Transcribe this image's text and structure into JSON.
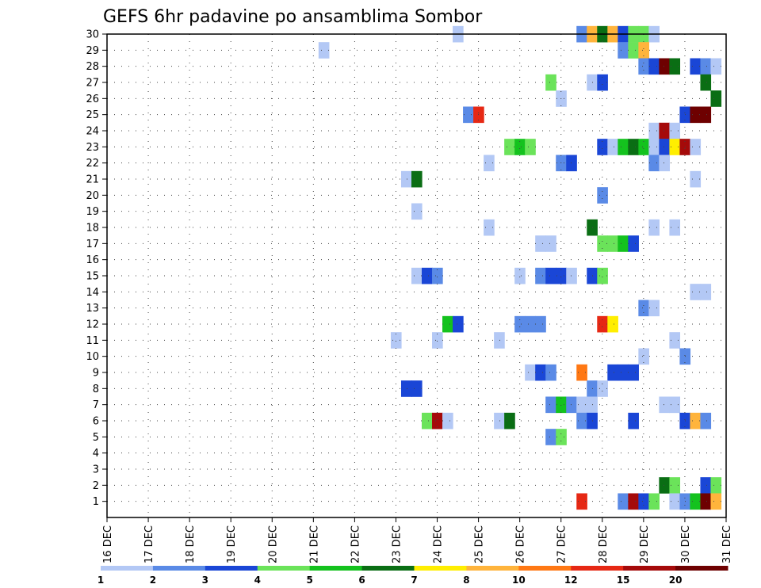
{
  "chart_data": {
    "type": "heatmap",
    "title": "GEFS 6hr padavine po ansamblima Sombor",
    "xlabel": "",
    "ylabel": "",
    "x_ticks": [
      "16 DEC",
      "17 DEC",
      "18 DEC",
      "19 DEC",
      "20 DEC",
      "21 DEC",
      "22 DEC",
      "23 DEC",
      "24 DEC",
      "25 DEC",
      "26 DEC",
      "27 DEC",
      "28 DEC",
      "29 DEC",
      "30 DEC",
      "31 DEC"
    ],
    "y_ticks": [
      1,
      2,
      3,
      4,
      5,
      6,
      7,
      8,
      9,
      10,
      11,
      12,
      13,
      14,
      15,
      16,
      17,
      18,
      19,
      20,
      21,
      22,
      23,
      24,
      25,
      26,
      27,
      28,
      29,
      30
    ],
    "y_range": [
      0,
      30
    ],
    "grid": true,
    "colorbar": {
      "labels": [
        "1",
        "2",
        "3",
        "4",
        "5",
        "6",
        "7",
        "8",
        "10",
        "12",
        "15",
        "20"
      ],
      "colors": [
        "#b3c8f5",
        "#5a8ae6",
        "#1a46d6",
        "#6be35a",
        "#14c21e",
        "#0a6e14",
        "#ffee00",
        "#ffb43c",
        "#ff7814",
        "#e62814",
        "#a50a0a",
        "#6e0000"
      ]
    },
    "cells_note": "each cell: [ensemble member, day offset from 16 DEC (6h steps of 0.25), color class 1-12]",
    "cells": [
      [
        30,
        8.5,
        1
      ],
      [
        30,
        11.5,
        2
      ],
      [
        30,
        11.75,
        8
      ],
      [
        30,
        12.0,
        6
      ],
      [
        30,
        12.25,
        8
      ],
      [
        30,
        12.5,
        3
      ],
      [
        30,
        12.75,
        4
      ],
      [
        30,
        13.0,
        4
      ],
      [
        30,
        13.25,
        1
      ],
      [
        29,
        5.25,
        1
      ],
      [
        29,
        12.5,
        2
      ],
      [
        29,
        12.75,
        4
      ],
      [
        29,
        13.0,
        8
      ],
      [
        28,
        13.0,
        2
      ],
      [
        28,
        13.25,
        3
      ],
      [
        28,
        13.5,
        12
      ],
      [
        28,
        13.75,
        6
      ],
      [
        28,
        14.25,
        3
      ],
      [
        28,
        14.5,
        2
      ],
      [
        28,
        14.75,
        1
      ],
      [
        27,
        10.75,
        4
      ],
      [
        27,
        11.75,
        1
      ],
      [
        27,
        12.0,
        3
      ],
      [
        27,
        14.5,
        6
      ],
      [
        26,
        11.0,
        1
      ],
      [
        26,
        14.75,
        6
      ],
      [
        25,
        8.75,
        2
      ],
      [
        25,
        9.0,
        10
      ],
      [
        25,
        14.0,
        3
      ],
      [
        25,
        14.25,
        12
      ],
      [
        25,
        14.5,
        12
      ],
      [
        24,
        13.25,
        1
      ],
      [
        24,
        13.5,
        11
      ],
      [
        24,
        13.75,
        1
      ],
      [
        23,
        9.75,
        4
      ],
      [
        23,
        10.0,
        5
      ],
      [
        23,
        10.25,
        4
      ],
      [
        23,
        12.0,
        3
      ],
      [
        23,
        12.25,
        1
      ],
      [
        23,
        12.5,
        5
      ],
      [
        23,
        12.75,
        6
      ],
      [
        23,
        13.0,
        5
      ],
      [
        23,
        13.25,
        1
      ],
      [
        23,
        13.5,
        3
      ],
      [
        23,
        13.75,
        7
      ],
      [
        23,
        14.0,
        11
      ],
      [
        23,
        14.25,
        1
      ],
      [
        22,
        9.25,
        1
      ],
      [
        22,
        11.0,
        2
      ],
      [
        22,
        11.25,
        3
      ],
      [
        22,
        13.25,
        2
      ],
      [
        22,
        13.5,
        1
      ],
      [
        21,
        7.25,
        1
      ],
      [
        21,
        7.5,
        6
      ],
      [
        21,
        14.25,
        1
      ],
      [
        20,
        12.0,
        2
      ],
      [
        19,
        7.5,
        1
      ],
      [
        18,
        9.25,
        1
      ],
      [
        18,
        11.75,
        6
      ],
      [
        18,
        13.25,
        1
      ],
      [
        18,
        13.75,
        1
      ],
      [
        17,
        10.5,
        1
      ],
      [
        17,
        10.75,
        1
      ],
      [
        17,
        12.0,
        4
      ],
      [
        17,
        12.25,
        4
      ],
      [
        17,
        12.5,
        5
      ],
      [
        17,
        12.75,
        3
      ],
      [
        15,
        7.5,
        1
      ],
      [
        15,
        7.75,
        3
      ],
      [
        15,
        8.0,
        2
      ],
      [
        15,
        10.0,
        1
      ],
      [
        15,
        10.5,
        2
      ],
      [
        15,
        10.75,
        3
      ],
      [
        15,
        11.0,
        3
      ],
      [
        15,
        11.25,
        1
      ],
      [
        15,
        11.75,
        3
      ],
      [
        15,
        12.0,
        4
      ],
      [
        14,
        14.25,
        1
      ],
      [
        14,
        14.5,
        1
      ],
      [
        13,
        13.0,
        2
      ],
      [
        13,
        13.25,
        1
      ],
      [
        12,
        8.25,
        5
      ],
      [
        12,
        8.5,
        3
      ],
      [
        12,
        10.0,
        2
      ],
      [
        12,
        10.25,
        2
      ],
      [
        12,
        10.5,
        2
      ],
      [
        12,
        12.0,
        10
      ],
      [
        12,
        12.25,
        7
      ],
      [
        11,
        7.0,
        1
      ],
      [
        11,
        8.0,
        1
      ],
      [
        11,
        9.5,
        1
      ],
      [
        11,
        13.75,
        1
      ],
      [
        10,
        13.0,
        1
      ],
      [
        10,
        14.0,
        2
      ],
      [
        9,
        10.25,
        1
      ],
      [
        9,
        10.5,
        3
      ],
      [
        9,
        10.75,
        2
      ],
      [
        9,
        11.5,
        9
      ],
      [
        9,
        12.25,
        3
      ],
      [
        9,
        12.5,
        3
      ],
      [
        9,
        12.75,
        3
      ],
      [
        8,
        7.25,
        3
      ],
      [
        8,
        7.5,
        3
      ],
      [
        8,
        11.75,
        2
      ],
      [
        8,
        12.0,
        1
      ],
      [
        7,
        10.75,
        2
      ],
      [
        7,
        11.0,
        5
      ],
      [
        7,
        11.25,
        2
      ],
      [
        7,
        11.5,
        1
      ],
      [
        7,
        11.75,
        1
      ],
      [
        7,
        13.5,
        1
      ],
      [
        7,
        13.75,
        1
      ],
      [
        6,
        7.75,
        4
      ],
      [
        6,
        8.0,
        11
      ],
      [
        6,
        8.25,
        1
      ],
      [
        6,
        9.5,
        1
      ],
      [
        6,
        9.75,
        6
      ],
      [
        6,
        11.5,
        2
      ],
      [
        6,
        11.75,
        3
      ],
      [
        6,
        12.75,
        3
      ],
      [
        6,
        14.0,
        3
      ],
      [
        6,
        14.25,
        8
      ],
      [
        6,
        14.5,
        2
      ],
      [
        5,
        10.75,
        2
      ],
      [
        5,
        11.0,
        4
      ],
      [
        2,
        13.5,
        6
      ],
      [
        2,
        13.75,
        4
      ],
      [
        2,
        14.5,
        3
      ],
      [
        2,
        14.75,
        4
      ],
      [
        1,
        11.5,
        10
      ],
      [
        1,
        12.5,
        2
      ],
      [
        1,
        12.75,
        11
      ],
      [
        1,
        13.0,
        3
      ],
      [
        1,
        13.25,
        4
      ],
      [
        1,
        13.75,
        1
      ],
      [
        1,
        14.0,
        2
      ],
      [
        1,
        14.25,
        5
      ],
      [
        1,
        14.5,
        12
      ],
      [
        1,
        14.75,
        8
      ]
    ]
  }
}
